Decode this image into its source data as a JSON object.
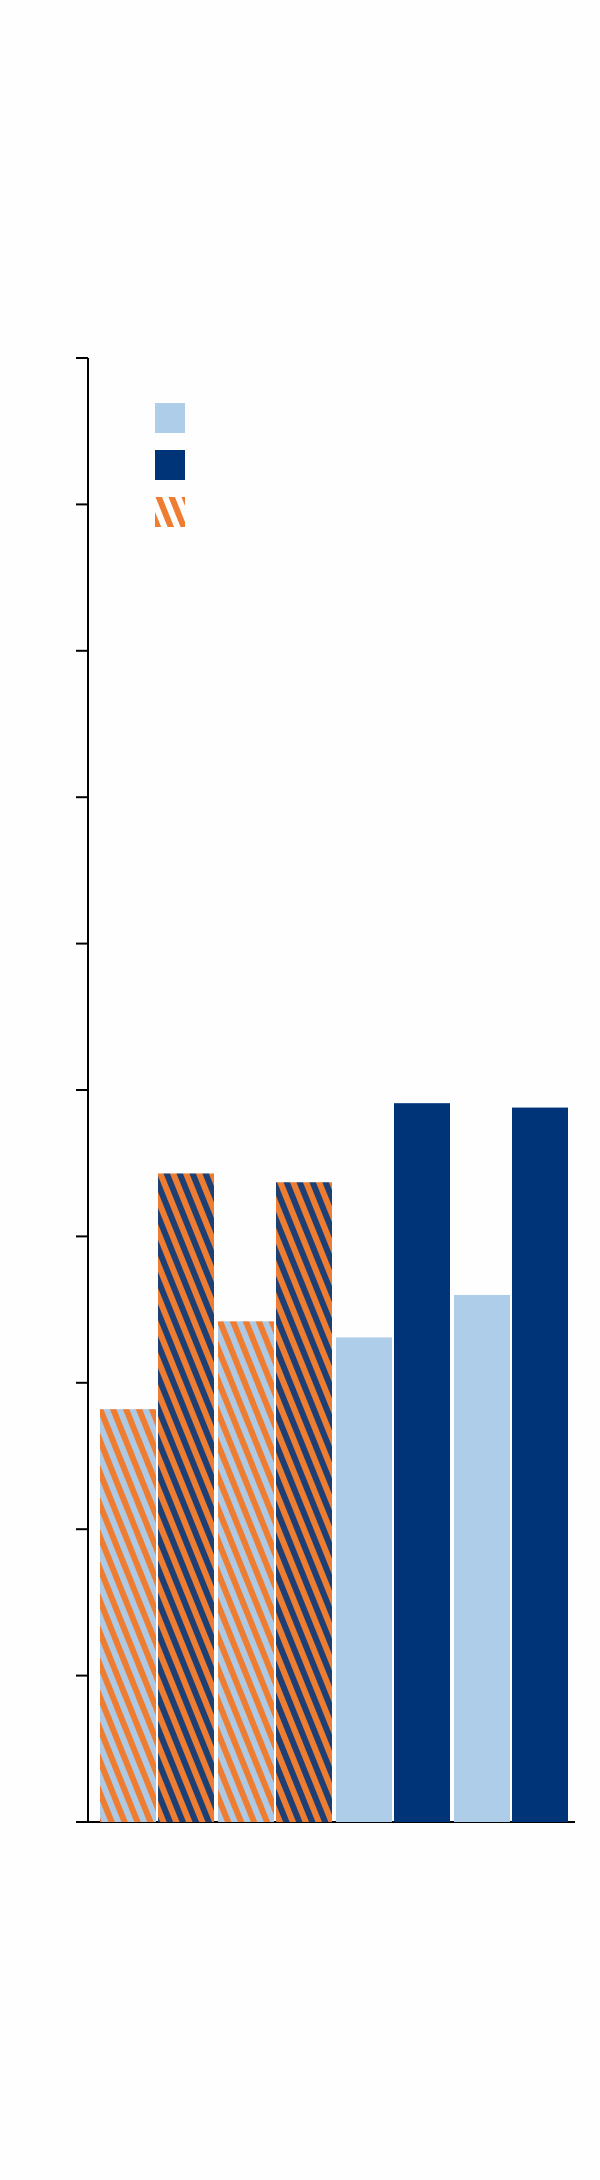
{
  "chart_data": {
    "type": "bar",
    "title": "",
    "xlabel": "",
    "ylabel": "",
    "ylim": [
      0,
      10
    ],
    "y_ticks": [
      0,
      1,
      2,
      3,
      4,
      5,
      6,
      7,
      8,
      9,
      10
    ],
    "grid": false,
    "legend_position": "top-left",
    "groups": [
      {
        "bars": [
          {
            "series": 3,
            "value": 2.82,
            "style": "hatched",
            "base_color": "#ee7d31",
            "stripe_color": "#aec9e3"
          },
          {
            "series": 3,
            "value": 4.43,
            "style": "hatched",
            "base_color": "#ee7d31",
            "stripe_color": "#1e3f73"
          }
        ]
      },
      {
        "bars": [
          {
            "series": 3,
            "value": 3.42,
            "style": "hatched",
            "base_color": "#ee7d31",
            "stripe_color": "#aec9e3"
          },
          {
            "series": 3,
            "value": 4.37,
            "style": "hatched",
            "base_color": "#ee7d31",
            "stripe_color": "#1e3f73"
          }
        ]
      },
      {
        "bars": [
          {
            "series": 1,
            "value": 3.31,
            "style": "solid",
            "base_color": "#aecde8"
          },
          {
            "series": 2,
            "value": 4.91,
            "style": "solid",
            "base_color": "#003478"
          }
        ]
      },
      {
        "bars": [
          {
            "series": 1,
            "value": 3.6,
            "style": "solid",
            "base_color": "#aecde8"
          },
          {
            "series": 2,
            "value": 4.88,
            "style": "solid",
            "base_color": "#003478"
          }
        ]
      }
    ],
    "legend": [
      {
        "label": "",
        "swatch": "solid",
        "color": "#aecde8"
      },
      {
        "label": "",
        "swatch": "solid",
        "color": "#003478"
      },
      {
        "label": "",
        "swatch": "hatched",
        "color": "#ee7d31"
      }
    ],
    "colors": {
      "axis": "#000000",
      "background": "#fefefe"
    }
  }
}
